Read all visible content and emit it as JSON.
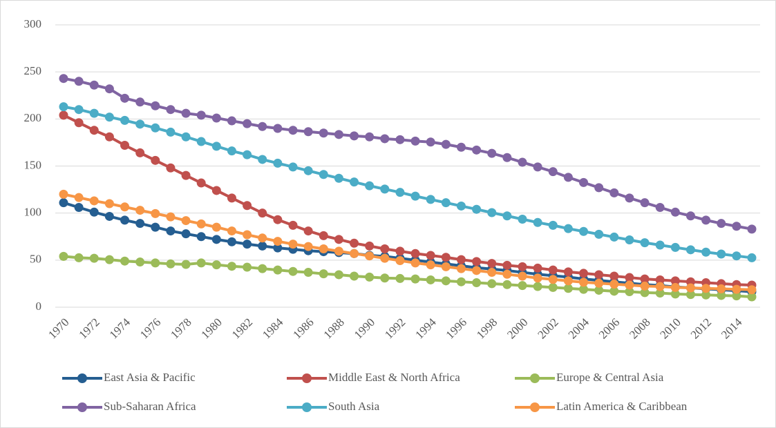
{
  "chart_data": {
    "type": "line",
    "categories": [
      1970,
      null,
      1972,
      null,
      1974,
      null,
      1976,
      null,
      1978,
      null,
      1980,
      null,
      1982,
      null,
      1984,
      null,
      1986,
      null,
      1988,
      null,
      1990,
      null,
      1992,
      null,
      1994,
      null,
      1996,
      null,
      1998,
      null,
      2000,
      null,
      2002,
      null,
      2004,
      null,
      2006,
      null,
      2008,
      null,
      2010,
      null,
      2012,
      null,
      2014,
      null
    ],
    "ylim": [
      0,
      300
    ],
    "yticks": [
      0,
      50,
      100,
      150,
      200,
      250,
      300
    ],
    "grid": true,
    "legend": "bottom",
    "series": [
      {
        "name": "East Asia & Pacific",
        "color": "#255e91",
        "values": [
          111,
          106,
          101,
          96.5,
          92.5,
          89,
          85,
          81,
          78,
          75,
          72,
          69.5,
          67,
          65,
          63,
          61.5,
          60,
          59,
          58,
          57,
          55,
          54,
          52,
          50,
          48,
          46,
          44,
          42,
          40.5,
          39,
          37,
          35,
          33.5,
          32,
          30,
          28.5,
          27,
          25.5,
          24,
          23,
          21.5,
          20.5,
          19.5,
          18.5,
          17.5,
          16.5
        ]
      },
      {
        "name": "Middle East & North Africa",
        "color": "#c0504d",
        "values": [
          204,
          196,
          188,
          181,
          172,
          164,
          156,
          148,
          140,
          132,
          124,
          116,
          108,
          100,
          93,
          87,
          81,
          76,
          72,
          68,
          65,
          62,
          59.5,
          57,
          55,
          53,
          50.5,
          48.5,
          46.5,
          44.5,
          43,
          41.5,
          39.5,
          37.5,
          36,
          34.5,
          33,
          31.5,
          30,
          29,
          28,
          27,
          26,
          25,
          24,
          23.5
        ]
      },
      {
        "name": "Europe & Central Asia",
        "color": "#9bbb59",
        "values": [
          54,
          52.5,
          52,
          50.5,
          49,
          48,
          47,
          46,
          45.5,
          47,
          45,
          43.5,
          42.5,
          41,
          39.5,
          38,
          37,
          35.5,
          34.5,
          33,
          32,
          31,
          30.5,
          30,
          29,
          28,
          27,
          26,
          25,
          24,
          23,
          22,
          21,
          20,
          19,
          18,
          17,
          16.5,
          15.5,
          15,
          14,
          13.5,
          13,
          12.5,
          12,
          11
        ]
      },
      {
        "name": "Sub-Saharan Africa",
        "color": "#8064a2",
        "values": [
          243,
          240,
          236,
          232,
          222,
          218,
          214,
          210,
          206,
          204,
          201,
          198,
          195,
          192,
          190,
          188,
          186.5,
          185,
          183.5,
          182,
          181,
          179,
          178,
          176.5,
          175.5,
          173,
          170,
          167,
          163.5,
          159,
          154,
          149,
          144,
          138,
          132.5,
          127,
          121.5,
          116,
          111,
          106,
          101,
          97,
          92.5,
          89,
          86,
          83
        ]
      },
      {
        "name": "South Asia",
        "color": "#4bacc6",
        "values": [
          213,
          210,
          206,
          202,
          198.5,
          194.5,
          190.5,
          186,
          181,
          176,
          171,
          166,
          162,
          157,
          153,
          149,
          145,
          141,
          137,
          133,
          129,
          125.5,
          122,
          118,
          114.5,
          111,
          107.5,
          104,
          100.5,
          97,
          93.5,
          90,
          87,
          83.5,
          80.5,
          77.5,
          74.5,
          71.5,
          68.5,
          66,
          63.5,
          61,
          58.5,
          56.5,
          54.5,
          52.5
        ]
      },
      {
        "name": "Latin America & Caribbean",
        "color": "#f79646",
        "values": [
          120,
          116.5,
          113,
          110,
          106.5,
          103,
          99.5,
          96,
          92,
          88.5,
          85,
          81,
          77,
          73.5,
          70,
          67,
          64.5,
          62,
          59.5,
          57,
          54.5,
          52,
          49.5,
          47,
          45,
          43,
          41,
          39,
          37,
          35,
          33,
          31,
          29.5,
          28,
          26.5,
          25.5,
          24.5,
          23.5,
          22.5,
          22,
          21,
          20.5,
          20,
          19.5,
          19,
          18.5
        ]
      }
    ]
  }
}
